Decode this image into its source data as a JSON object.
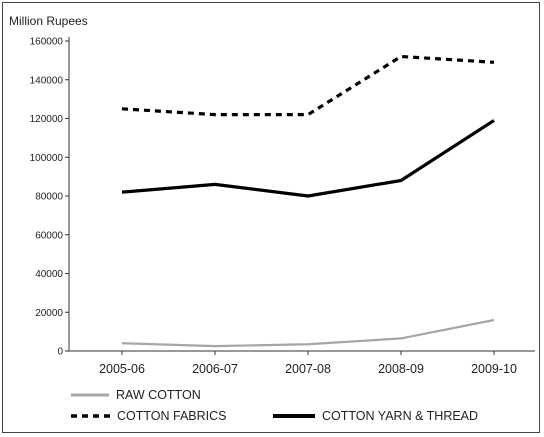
{
  "chart_data": {
    "type": "line",
    "ylabel": "Million Rupees",
    "categories": [
      "2005-06",
      "2006-07",
      "2007-08",
      "2008-09",
      "2009-10"
    ],
    "yticks": [
      "0",
      "20000",
      "40000",
      "60000",
      "80000",
      "100000",
      "120000",
      "140000",
      "160000"
    ],
    "ylim": [
      0,
      160000
    ],
    "grid": false,
    "legend_position": "bottom",
    "series": [
      {
        "name": "RAW COTTON",
        "values": [
          4000,
          2500,
          3500,
          6500,
          16000
        ],
        "color": "#a6a6a6",
        "style": "solid"
      },
      {
        "name": "COTTON FABRICS",
        "values": [
          125000,
          122000,
          122000,
          152000,
          149000
        ],
        "color": "#000000",
        "style": "dotted"
      },
      {
        "name": "COTTON YARN & THREAD",
        "values": [
          82000,
          86000,
          80000,
          88000,
          119000
        ],
        "color": "#000000",
        "style": "solid"
      }
    ]
  }
}
